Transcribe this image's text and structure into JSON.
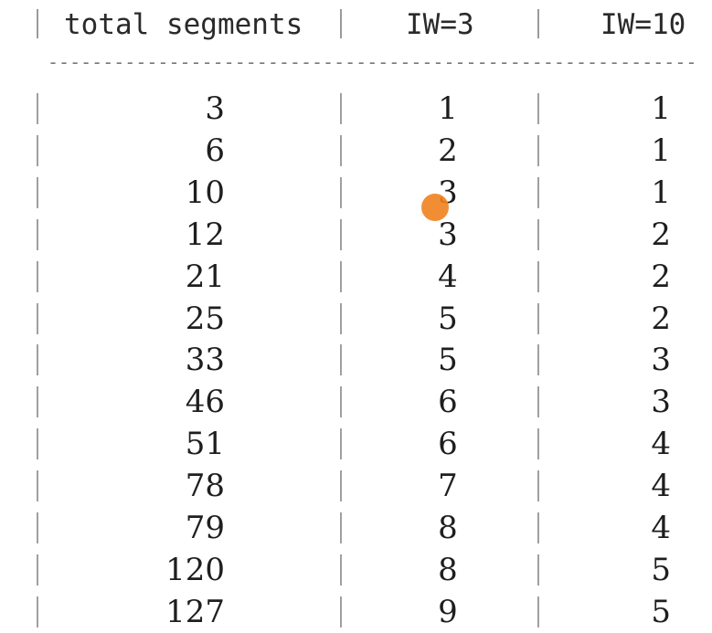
{
  "table": {
    "headers": [
      "total segments",
      "IW=3",
      "IW=10"
    ],
    "separator": "-----------------------------------------------------------",
    "rows": [
      [
        "3",
        "1",
        "1"
      ],
      [
        "6",
        "2",
        "1"
      ],
      [
        "10",
        "3",
        "1"
      ],
      [
        "12",
        "3",
        "2"
      ],
      [
        "21",
        "4",
        "2"
      ],
      [
        "25",
        "5",
        "2"
      ],
      [
        "33",
        "5",
        "3"
      ],
      [
        "46",
        "6",
        "3"
      ],
      [
        "51",
        "6",
        "4"
      ],
      [
        "78",
        "7",
        "4"
      ],
      [
        "79",
        "8",
        "4"
      ],
      [
        "120",
        "8",
        "5"
      ],
      [
        "127",
        "9",
        "5"
      ]
    ]
  },
  "colors": {
    "text": "#1e1e1e",
    "separator": "#777777",
    "cursor": "#f0821e"
  }
}
